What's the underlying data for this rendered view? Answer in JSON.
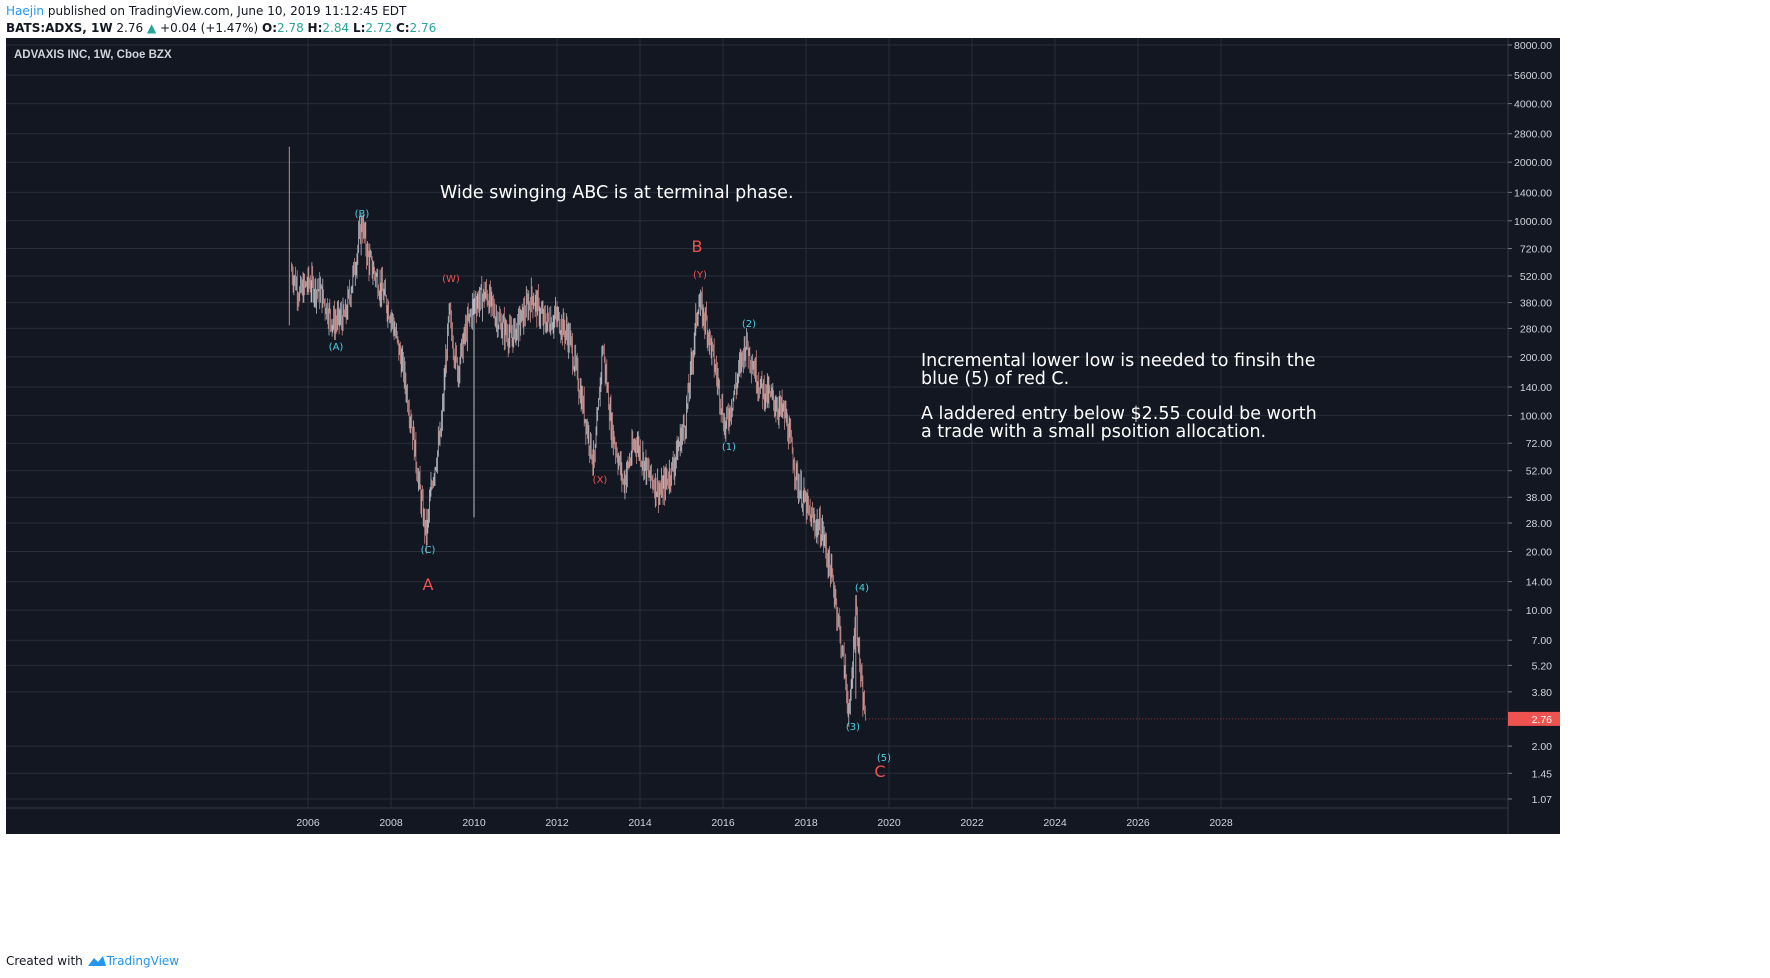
{
  "header": {
    "author": "Haejin",
    "published_text": "published on TradingView.com, June 10, 2019 11:12:45 EDT",
    "symbol": "BATS:ADXS, 1W",
    "last": "2.76",
    "arrow": "▲",
    "change": "+0.04 (+1.47%)",
    "open_label": "O:",
    "open_value": "2.78",
    "high_label": "H:",
    "high_value": "2.84",
    "low_label": "L:",
    "low_value": "2.72",
    "close_label": "C:",
    "close_value": "2.76"
  },
  "footer": {
    "created_with": "Created with",
    "brand": "TradingView"
  },
  "colors": {
    "background": "#131722",
    "grid": "#2a2e39",
    "candle": "#c8cbd3",
    "cyan_label": "#4dd0e1",
    "red_label": "#ef5350",
    "price_tag": "#ef5350"
  },
  "chart_data": {
    "type": "candlestick",
    "title": "ADVAXIS INC, 1W, Cboe BZX",
    "y_scale": "log",
    "y_ticks": [
      8000,
      5600,
      4000,
      2800,
      2000,
      1400,
      1000,
      720,
      520,
      380,
      280,
      200,
      140,
      100,
      72,
      52,
      38,
      28,
      20,
      14,
      10,
      7,
      5.2,
      3.8,
      2.76,
      2,
      1.45,
      1.07
    ],
    "y_tick_labels": [
      "8000.00",
      "5600.00",
      "4000.00",
      "2800.00",
      "2000.00",
      "1400.00",
      "1000.00",
      "720.00",
      "520.00",
      "380.00",
      "280.00",
      "200.00",
      "140.00",
      "100.00",
      "72.00",
      "52.00",
      "38.00",
      "28.00",
      "20.00",
      "14.00",
      "10.00",
      "7.00",
      "5.20",
      "3.80",
      "2.76",
      "2.00",
      "1.45",
      "1.07"
    ],
    "x_tick_labels": [
      "2006",
      "2008",
      "2010",
      "2012",
      "2014",
      "2016",
      "2018",
      "2020",
      "2022",
      "2024",
      "2026",
      "2028"
    ],
    "current_price": "2.76",
    "grid": true,
    "price_path": [
      [
        2005.55,
        2400
      ],
      [
        2005.6,
        560
      ],
      [
        2005.8,
        420
      ],
      [
        2006.0,
        480
      ],
      [
        2006.3,
        430
      ],
      [
        2006.6,
        300
      ],
      [
        2006.9,
        320
      ],
      [
        2007.1,
        540
      ],
      [
        2007.3,
        980
      ],
      [
        2007.45,
        640
      ],
      [
        2007.7,
        480
      ],
      [
        2008.0,
        330
      ],
      [
        2008.3,
        170
      ],
      [
        2008.5,
        90
      ],
      [
        2008.7,
        40
      ],
      [
        2008.85,
        24
      ],
      [
        2009.0,
        48
      ],
      [
        2009.2,
        80
      ],
      [
        2009.4,
        330
      ],
      [
        2009.6,
        170
      ],
      [
        2009.8,
        270
      ],
      [
        2010.0,
        380
      ],
      [
        2010.3,
        420
      ],
      [
        2010.6,
        300
      ],
      [
        2010.9,
        250
      ],
      [
        2011.2,
        330
      ],
      [
        2011.4,
        410
      ],
      [
        2011.7,
        300
      ],
      [
        2012.0,
        320
      ],
      [
        2012.3,
        250
      ],
      [
        2012.6,
        120
      ],
      [
        2012.9,
        55
      ],
      [
        2013.1,
        230
      ],
      [
        2013.3,
        90
      ],
      [
        2013.6,
        45
      ],
      [
        2013.9,
        75
      ],
      [
        2014.2,
        50
      ],
      [
        2014.5,
        40
      ],
      [
        2014.8,
        55
      ],
      [
        2015.1,
        95
      ],
      [
        2015.4,
        380
      ],
      [
        2015.6,
        300
      ],
      [
        2015.9,
        140
      ],
      [
        2016.05,
        85
      ],
      [
        2016.3,
        140
      ],
      [
        2016.55,
        240
      ],
      [
        2016.9,
        140
      ],
      [
        2017.2,
        120
      ],
      [
        2017.5,
        100
      ],
      [
        2017.8,
        45
      ],
      [
        2018.1,
        30
      ],
      [
        2018.4,
        25
      ],
      [
        2018.7,
        12
      ],
      [
        2018.9,
        5.5
      ],
      [
        2019.05,
        2.8
      ],
      [
        2019.2,
        10.5
      ],
      [
        2019.35,
        3.6
      ],
      [
        2019.45,
        2.76
      ]
    ],
    "wave_labels": [
      {
        "text": "(B)",
        "series": "cyan"
      },
      {
        "text": "(A)",
        "series": "cyan"
      },
      {
        "text": "(C)",
        "series": "cyan"
      },
      {
        "text": "(W)",
        "series": "red"
      },
      {
        "text": "(X)",
        "series": "red"
      },
      {
        "text": "(Y)",
        "series": "red"
      },
      {
        "text": "(1)",
        "series": "cyan"
      },
      {
        "text": "(2)",
        "series": "cyan"
      },
      {
        "text": "(3)",
        "series": "cyan"
      },
      {
        "text": "(4)",
        "series": "cyan"
      },
      {
        "text": "(5)",
        "series": "cyan"
      },
      {
        "text": "A",
        "series": "red-large"
      },
      {
        "text": "B",
        "series": "red-large"
      },
      {
        "text": "C",
        "series": "red-large"
      }
    ],
    "annotations": [
      "Wide swinging ABC is at terminal phase.",
      "Incremental lower low is needed to finsih the",
      "blue (5) of red C.",
      "A laddered entry below $2.55 could be worth",
      "a trade with a small psoition allocation."
    ]
  }
}
